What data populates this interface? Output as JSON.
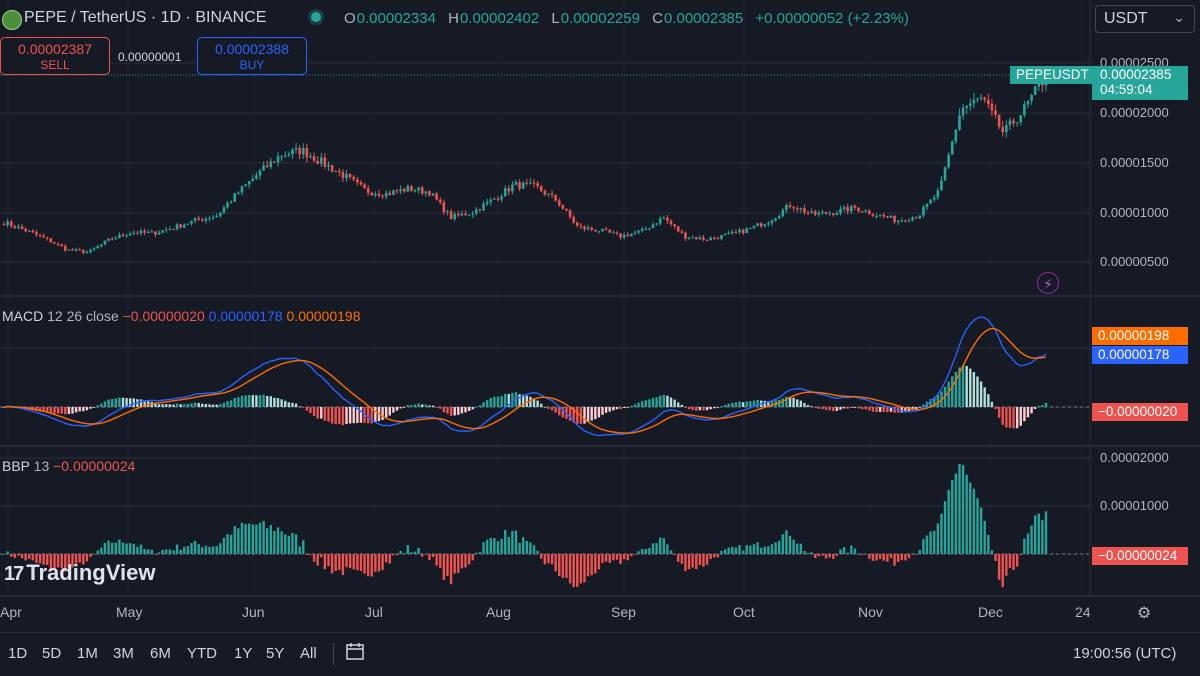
{
  "header": {
    "symbol": "PEPE / TetherUS · 1D · BINANCE",
    "open_key": "O",
    "open": "0.00002334",
    "high_key": "H",
    "high": "0.00002402",
    "low_key": "L",
    "low": "0.00002259",
    "close_key": "C",
    "close": "0.00002385",
    "change": "+0.00000052 (+2.23%)",
    "currency": "USDT"
  },
  "trade": {
    "sell_price": "0.00002387",
    "sell_label": "SELL",
    "spread": "0.00000001",
    "buy_price": "0.00002388",
    "buy_label": "BUY"
  },
  "price_tag": {
    "symbol": "PEPEUSDT",
    "price": "0.00002385",
    "countdown": "04:59:04"
  },
  "macd": {
    "title": "MACD",
    "params": "12 26 close",
    "hist": "−0.00000020",
    "macd": "0.00000178",
    "signal": "0.00000198"
  },
  "bbp": {
    "title": "BBP",
    "params": "13",
    "value": "−0.00000024"
  },
  "xlabels": [
    "Apr",
    "May",
    "Jun",
    "Jul",
    "Aug",
    "Sep",
    "Oct",
    "Nov",
    "Dec",
    "24"
  ],
  "bottom": {
    "ranges": [
      "1D",
      "5D",
      "1M",
      "3M",
      "6M",
      "YTD",
      "1Y",
      "5Y",
      "All"
    ],
    "clock": "19:00:56 (UTC)"
  },
  "brand": "TradingView",
  "colors": {
    "up": "#26a69a",
    "down": "#ef5350",
    "macd": "#2962ff",
    "signal": "#ff6d00",
    "bg": "#161a25",
    "grid": "#2a2e39"
  },
  "chart_data": [
    {
      "type": "candlestick",
      "title": "PEPE / TetherUS · 1D · BINANCE",
      "y_axis": {
        "ticks": [
          "0.00000500",
          "0.00001000",
          "0.00001500",
          "0.00002000",
          "0.00002500"
        ],
        "range": [
          1.8e-06,
          2.9e-05
        ]
      },
      "x_axis": {
        "ticks": [
          "Apr",
          "May",
          "Jun",
          "Jul",
          "Aug",
          "Sep",
          "Oct",
          "Nov",
          "Dec",
          "24"
        ]
      },
      "approx_weekly_close": [
        9e-06,
        8.2e-06,
        7.3e-06,
        6.2e-06,
        6e-06,
        7.3e-06,
        8e-06,
        7.9e-06,
        8.5e-06,
        9.2e-06,
        9.7e-06,
        1.2e-05,
        1.4e-05,
        1.58e-05,
        1.63e-05,
        1.5e-05,
        1.37e-05,
        1.22e-05,
        1.19e-05,
        1.24e-05,
        1.21e-05,
        9.5e-06,
        1e-05,
        1.13e-05,
        1.28e-05,
        1.26e-05,
        1.12e-05,
        8.5e-06,
        8.2e-06,
        7.6e-06,
        8.1e-06,
        9.5e-06,
        7.6e-06,
        7.3e-06,
        7.7e-06,
        8.3e-06,
        9.2e-06,
        1.08e-05,
        9.8e-06,
        1e-05,
        1.05e-05,
        9.8e-06,
        9.2e-06,
        9.7e-06,
        1.22e-05,
        2.05e-05,
        2.15e-05,
        1.8e-05,
        2.05e-05,
        2.38e-05
      ],
      "last": {
        "open": 2.334e-05,
        "high": 2.402e-05,
        "low": 2.259e-05,
        "close": 2.385e-05
      }
    },
    {
      "type": "line",
      "title": "MACD 12 26 close",
      "series": [
        {
          "name": "MACD",
          "last": 1.78e-06
        },
        {
          "name": "Signal",
          "last": 1.98e-06
        },
        {
          "name": "Histogram",
          "last": -2e-07
        }
      ]
    },
    {
      "type": "bar",
      "title": "BBP 13",
      "y_axis": {
        "ticks": [
          "0.00001000",
          "0.00002000"
        ]
      },
      "last": -2.4e-07
    }
  ]
}
